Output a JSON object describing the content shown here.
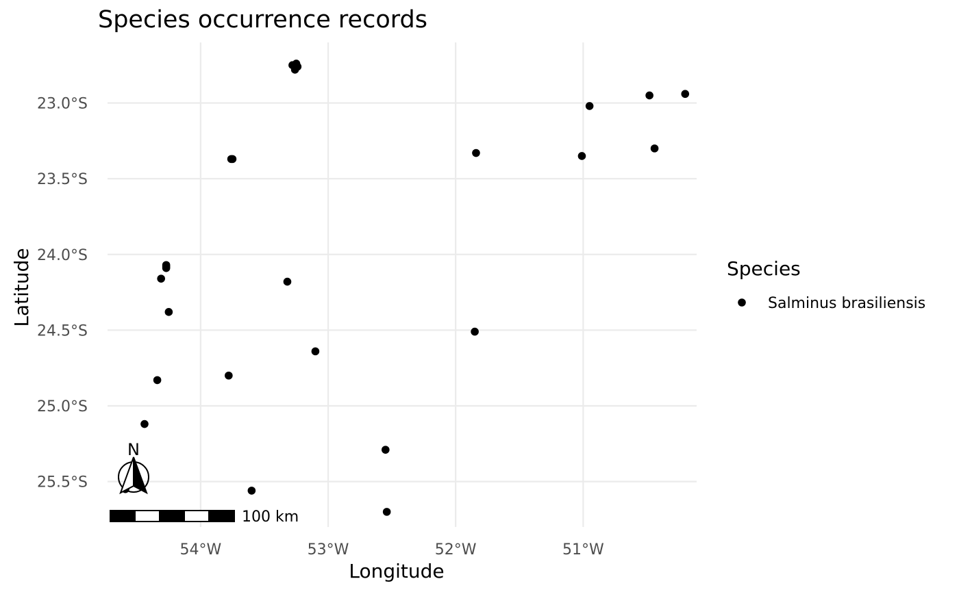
{
  "chart_data": {
    "type": "scatter",
    "title": "Species occurrence records",
    "xlabel": "Longitude",
    "ylabel": "Latitude",
    "xlim": [
      -54.73,
      -50.11
    ],
    "ylim": [
      -25.8,
      -22.6
    ],
    "x_ticks": [
      {
        "value": -54,
        "label": "54°W"
      },
      {
        "value": -53,
        "label": "53°W"
      },
      {
        "value": -52,
        "label": "52°W"
      },
      {
        "value": -51,
        "label": "51°W"
      }
    ],
    "y_ticks": [
      {
        "value": -23.0,
        "label": "23.0°S"
      },
      {
        "value": -23.5,
        "label": "23.5°S"
      },
      {
        "value": -24.0,
        "label": "24.0°S"
      },
      {
        "value": -24.5,
        "label": "24.5°S"
      },
      {
        "value": -25.0,
        "label": "25.0°S"
      },
      {
        "value": -25.5,
        "label": "25.5°S"
      }
    ],
    "grid": true,
    "legend": {
      "title": "Species",
      "position": "right",
      "entries": [
        {
          "label": "Salminus brasiliensis",
          "color": "#000000"
        }
      ]
    },
    "series": [
      {
        "name": "Salminus brasiliensis",
        "color": "#000000",
        "points": [
          {
            "x": -53.28,
            "y": -22.75
          },
          {
            "x": -53.24,
            "y": -22.76
          },
          {
            "x": -53.26,
            "y": -22.78
          },
          {
            "x": -53.25,
            "y": -22.74
          },
          {
            "x": -50.2,
            "y": -22.94
          },
          {
            "x": -50.48,
            "y": -22.95
          },
          {
            "x": -50.95,
            "y": -23.02
          },
          {
            "x": -53.76,
            "y": -23.37
          },
          {
            "x": -53.75,
            "y": -23.37
          },
          {
            "x": -51.84,
            "y": -23.33
          },
          {
            "x": -51.01,
            "y": -23.35
          },
          {
            "x": -50.44,
            "y": -23.3
          },
          {
            "x": -54.27,
            "y": -24.07
          },
          {
            "x": -54.27,
            "y": -24.08
          },
          {
            "x": -54.27,
            "y": -24.09
          },
          {
            "x": -54.31,
            "y": -24.16
          },
          {
            "x": -53.32,
            "y": -24.18
          },
          {
            "x": -54.25,
            "y": -24.38
          },
          {
            "x": -51.85,
            "y": -24.51
          },
          {
            "x": -53.1,
            "y": -24.64
          },
          {
            "x": -53.78,
            "y": -24.8
          },
          {
            "x": -54.34,
            "y": -24.83
          },
          {
            "x": -54.44,
            "y": -25.12
          },
          {
            "x": -52.55,
            "y": -25.29
          },
          {
            "x": -53.6,
            "y": -25.56
          },
          {
            "x": -54.59,
            "y": -25.55
          },
          {
            "x": -52.54,
            "y": -25.7
          }
        ]
      }
    ]
  },
  "north_arrow": {
    "label": "N"
  },
  "scale_bar": {
    "label": "100 km",
    "segments": 5
  }
}
